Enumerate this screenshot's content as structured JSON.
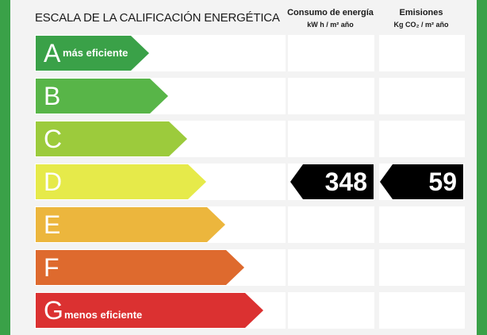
{
  "title": "ESCALA DE LA CALIFICACIÓN ENERGÉTICA",
  "columns": {
    "consumption": {
      "label": "Consumo de energía",
      "unit": "kW h / m² año"
    },
    "emissions": {
      "label": "Emisiones",
      "unit": "Kg CO₂ / m² año"
    }
  },
  "ratings": [
    {
      "letter": "A",
      "description": "más eficiente",
      "color": "#3aa148"
    },
    {
      "letter": "B",
      "description": "",
      "color": "#58b548"
    },
    {
      "letter": "C",
      "description": "",
      "color": "#9ccb3c"
    },
    {
      "letter": "D",
      "description": "",
      "color": "#e6ea4a"
    },
    {
      "letter": "E",
      "description": "",
      "color": "#ecb63d"
    },
    {
      "letter": "F",
      "description": "",
      "color": "#de6a2e"
    },
    {
      "letter": "G",
      "description": "menos eficiente",
      "color": "#db3131"
    }
  ],
  "result": {
    "rating": "D",
    "consumption": "348",
    "emissions": "59"
  }
}
